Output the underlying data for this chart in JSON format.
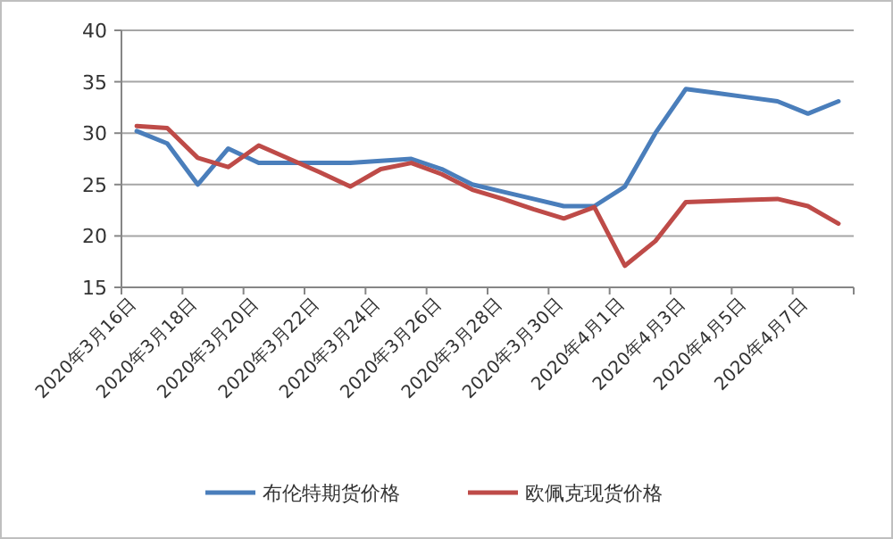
{
  "chart_data": {
    "type": "line",
    "categories": [
      "2020年3月16日",
      null,
      "2020年3月18日",
      null,
      "2020年3月20日",
      null,
      "2020年3月22日",
      null,
      "2020年3月24日",
      null,
      "2020年3月26日",
      null,
      "2020年3月28日",
      null,
      "2020年3月30日",
      null,
      "2020年4月1日",
      null,
      "2020年4月3日",
      null,
      "2020年4月5日",
      null,
      "2020年4月7日",
      null
    ],
    "series": [
      {
        "name": "布伦特期货价格",
        "color": "#4a7ebb",
        "values": [
          30.2,
          29.0,
          25.0,
          28.5,
          27.1,
          27.1,
          27.1,
          27.1,
          27.3,
          27.5,
          26.5,
          25.0,
          24.3,
          23.6,
          22.9,
          22.9,
          24.8,
          30.0,
          34.3,
          33.9,
          33.5,
          33.1,
          31.9,
          33.1
        ]
      },
      {
        "name": "欧佩克现货价格",
        "color": "#be4b48",
        "values": [
          30.7,
          30.5,
          27.6,
          26.7,
          28.8,
          27.5,
          26.2,
          24.8,
          26.5,
          27.1,
          26.0,
          24.5,
          23.6,
          22.6,
          21.7,
          22.8,
          17.1,
          19.5,
          23.3,
          23.4,
          23.5,
          23.6,
          22.9,
          21.2
        ]
      }
    ],
    "ylim": [
      15,
      40
    ],
    "yticks": [
      15,
      20,
      25,
      30,
      35,
      40
    ],
    "grid": "y",
    "legend": "bottom"
  }
}
